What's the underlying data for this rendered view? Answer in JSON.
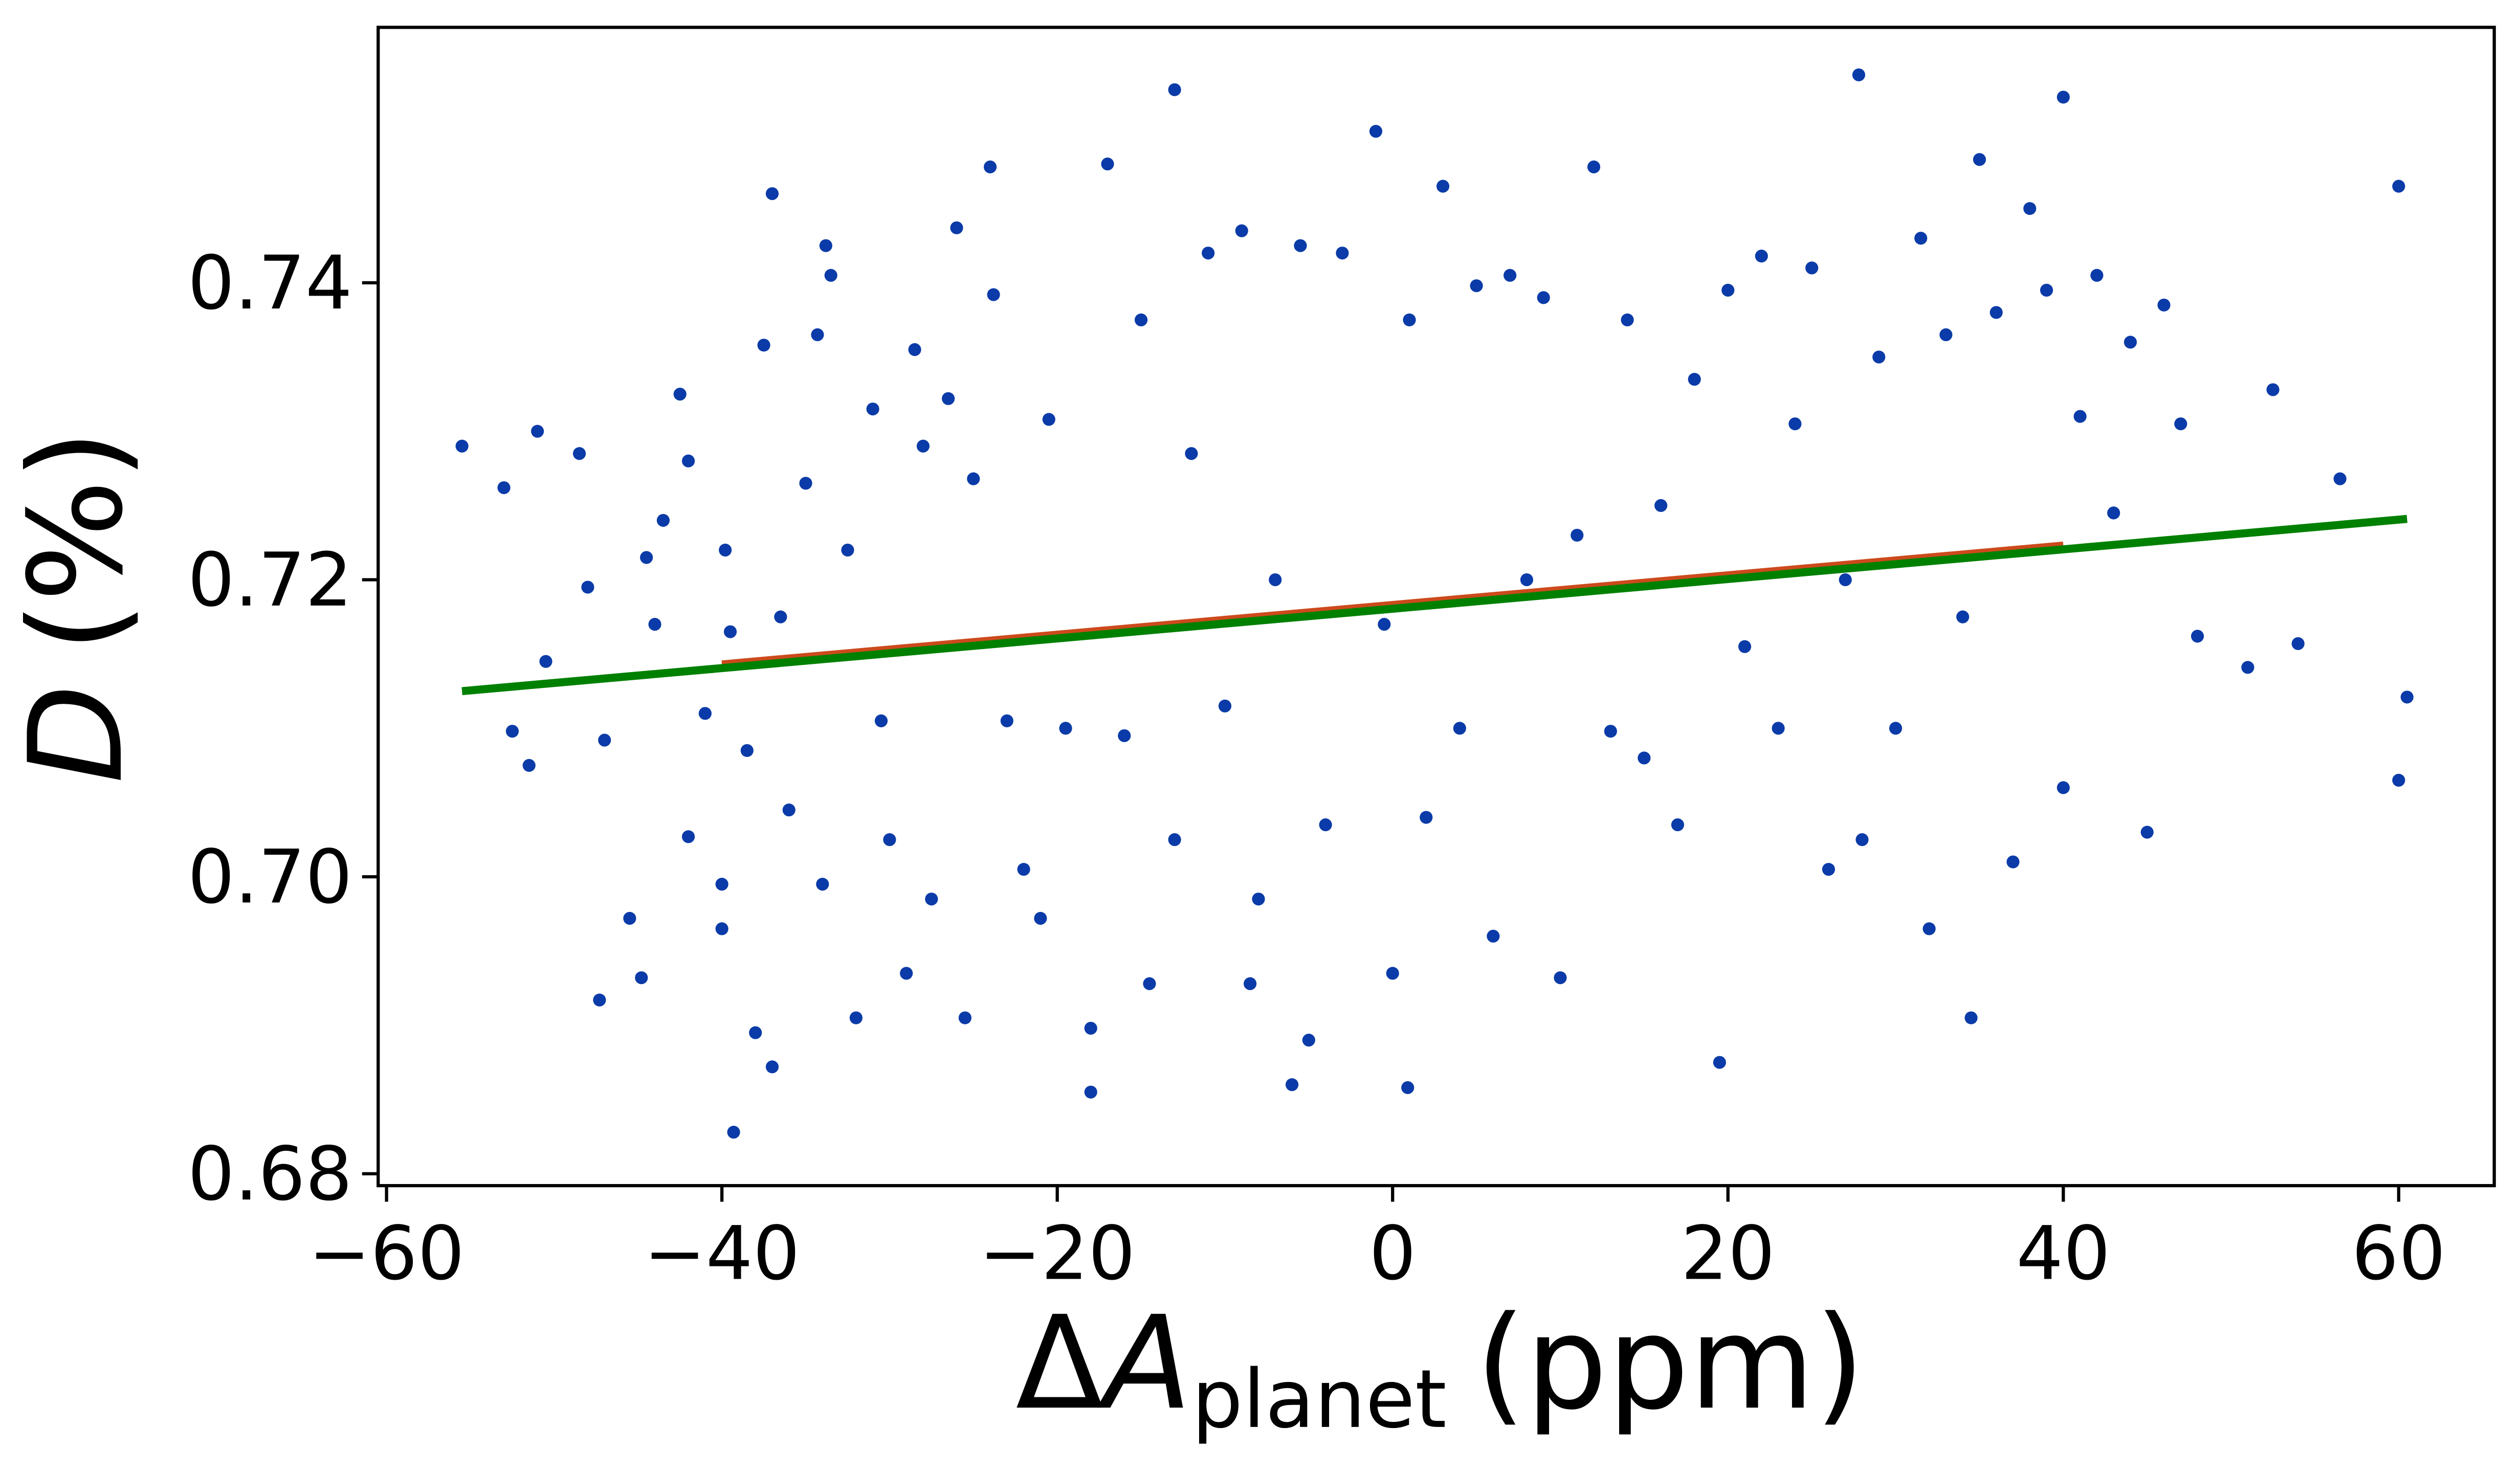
{
  "chart_data": {
    "type": "scatter",
    "xlabel": [
      "Δ",
      "A",
      "planet",
      "(ppm)"
    ],
    "ylabel": [
      "D",
      "(%)"
    ],
    "color": "#0b3ba8",
    "x": [
      -55.5,
      -53,
      -51,
      -52.5,
      -51.5,
      -50.5,
      -48.5,
      -48,
      -47,
      -47.3,
      -45.5,
      -44.8,
      -44.5,
      -44,
      -43.5,
      -42.5,
      -42,
      -42,
      -41,
      -40,
      -40,
      -39.8,
      -39.5,
      -39.3,
      -38.5,
      -38,
      -37.5,
      -37,
      -37,
      -36.5,
      -36,
      -35,
      -34.3,
      -34,
      -33.8,
      -33.5,
      -32.5,
      -32,
      -31,
      -30.5,
      -30,
      -29,
      -28.5,
      -28,
      -27.5,
      -26.5,
      -26,
      -25.5,
      -25,
      -24,
      -23.8,
      -23,
      -22,
      -21,
      -20.5,
      -19.5,
      -18,
      -18,
      -17,
      -16,
      -15,
      -14.5,
      -13,
      -13,
      -12,
      -11,
      -10,
      -9,
      -8.5,
      -8,
      -7,
      -6,
      -5.5,
      -5,
      -4,
      -3,
      -1,
      -0.5,
      0,
      0.9,
      1,
      2,
      3,
      4,
      5,
      6,
      7,
      8,
      9,
      10,
      11,
      12,
      13,
      14,
      15,
      16,
      17,
      18,
      19.5,
      20,
      21,
      22,
      23,
      24,
      25,
      26,
      27,
      27.8,
      28,
      29,
      30,
      31.5,
      32,
      33,
      34,
      34.5,
      35,
      36,
      37,
      38,
      39,
      40,
      40,
      41,
      42,
      43,
      44,
      45,
      46,
      47,
      48,
      51,
      52.5,
      54,
      56.5,
      60,
      60.5,
      60
    ],
    "values": [
      0.729,
      0.7262,
      0.73,
      0.7098,
      0.7075,
      0.7145,
      0.7285,
      0.7195,
      0.7092,
      0.6917,
      0.6972,
      0.6932,
      0.7215,
      0.717,
      0.724,
      0.7325,
      0.7027,
      0.728,
      0.711,
      0.6995,
      0.6965,
      0.722,
      0.7165,
      0.6828,
      0.7085,
      0.6895,
      0.7358,
      0.746,
      0.6872,
      0.7175,
      0.7045,
      0.7265,
      0.7365,
      0.6995,
      0.7425,
      0.7405,
      0.722,
      0.6905,
      0.7315,
      0.7105,
      0.7025,
      0.6935,
      0.7355,
      0.729,
      0.6985,
      0.7322,
      0.7437,
      0.6905,
      0.7268,
      0.7478,
      0.7392,
      0.7105,
      0.7005,
      0.6972,
      0.7308,
      0.71,
      0.6898,
      0.6855,
      0.748,
      0.7095,
      0.7375,
      0.6928,
      0.753,
      0.7025,
      0.7285,
      0.742,
      0.7115,
      0.7435,
      0.6928,
      0.6985,
      0.72,
      0.686,
      0.7425,
      0.689,
      0.7035,
      0.742,
      0.7502,
      0.717,
      0.6935,
      0.6858,
      0.7375,
      0.704,
      0.7465,
      0.71,
      0.7398,
      0.696,
      0.7405,
      0.72,
      0.739,
      0.6932,
      0.723,
      0.7478,
      0.7098,
      0.7375,
      0.708,
      0.725,
      0.7035,
      0.7335,
      0.6875,
      0.7395,
      0.7155,
      0.7418,
      0.71,
      0.7305,
      0.741,
      0.7005,
      0.72,
      0.754,
      0.7025,
      0.735,
      0.71,
      0.743,
      0.6965,
      0.7365,
      0.7175,
      0.6905,
      0.7483,
      0.738,
      0.701,
      0.745,
      0.7395,
      0.7525,
      0.706,
      0.731,
      0.7405,
      0.7245,
      0.736,
      0.703,
      0.7385,
      0.7305,
      0.7162,
      0.7141,
      0.7328,
      0.7157,
      0.7268,
      0.7465,
      0.7121,
      0.7065
    ],
    "lines": [
      {
        "x": [
          -40,
          40
        ],
        "values": [
          0.7143,
          0.7223
        ],
        "color": "#cc4a1c",
        "dashed": false
      },
      {
        "x": [
          -40,
          40
        ],
        "values": [
          0.7141,
          0.722
        ],
        "color": "#008000",
        "dashed": true
      },
      {
        "x": [
          -55.5,
          60.5
        ],
        "values": [
          0.7125,
          0.7241
        ],
        "color": "#008000",
        "dashed": false
      }
    ],
    "xlim": [
      -60.5,
      65.7
    ],
    "ylim": [
      0.6792,
      0.7572
    ],
    "xticks": [
      {
        "value": -60,
        "label": "−60"
      },
      {
        "value": -40,
        "label": "−40"
      },
      {
        "value": -20,
        "label": "−20"
      },
      0,
      20,
      40,
      60
    ],
    "yticks": [
      0.68,
      {
        "value": 0.7,
        "label": "0.70"
      },
      0.72,
      0.74
    ]
  }
}
